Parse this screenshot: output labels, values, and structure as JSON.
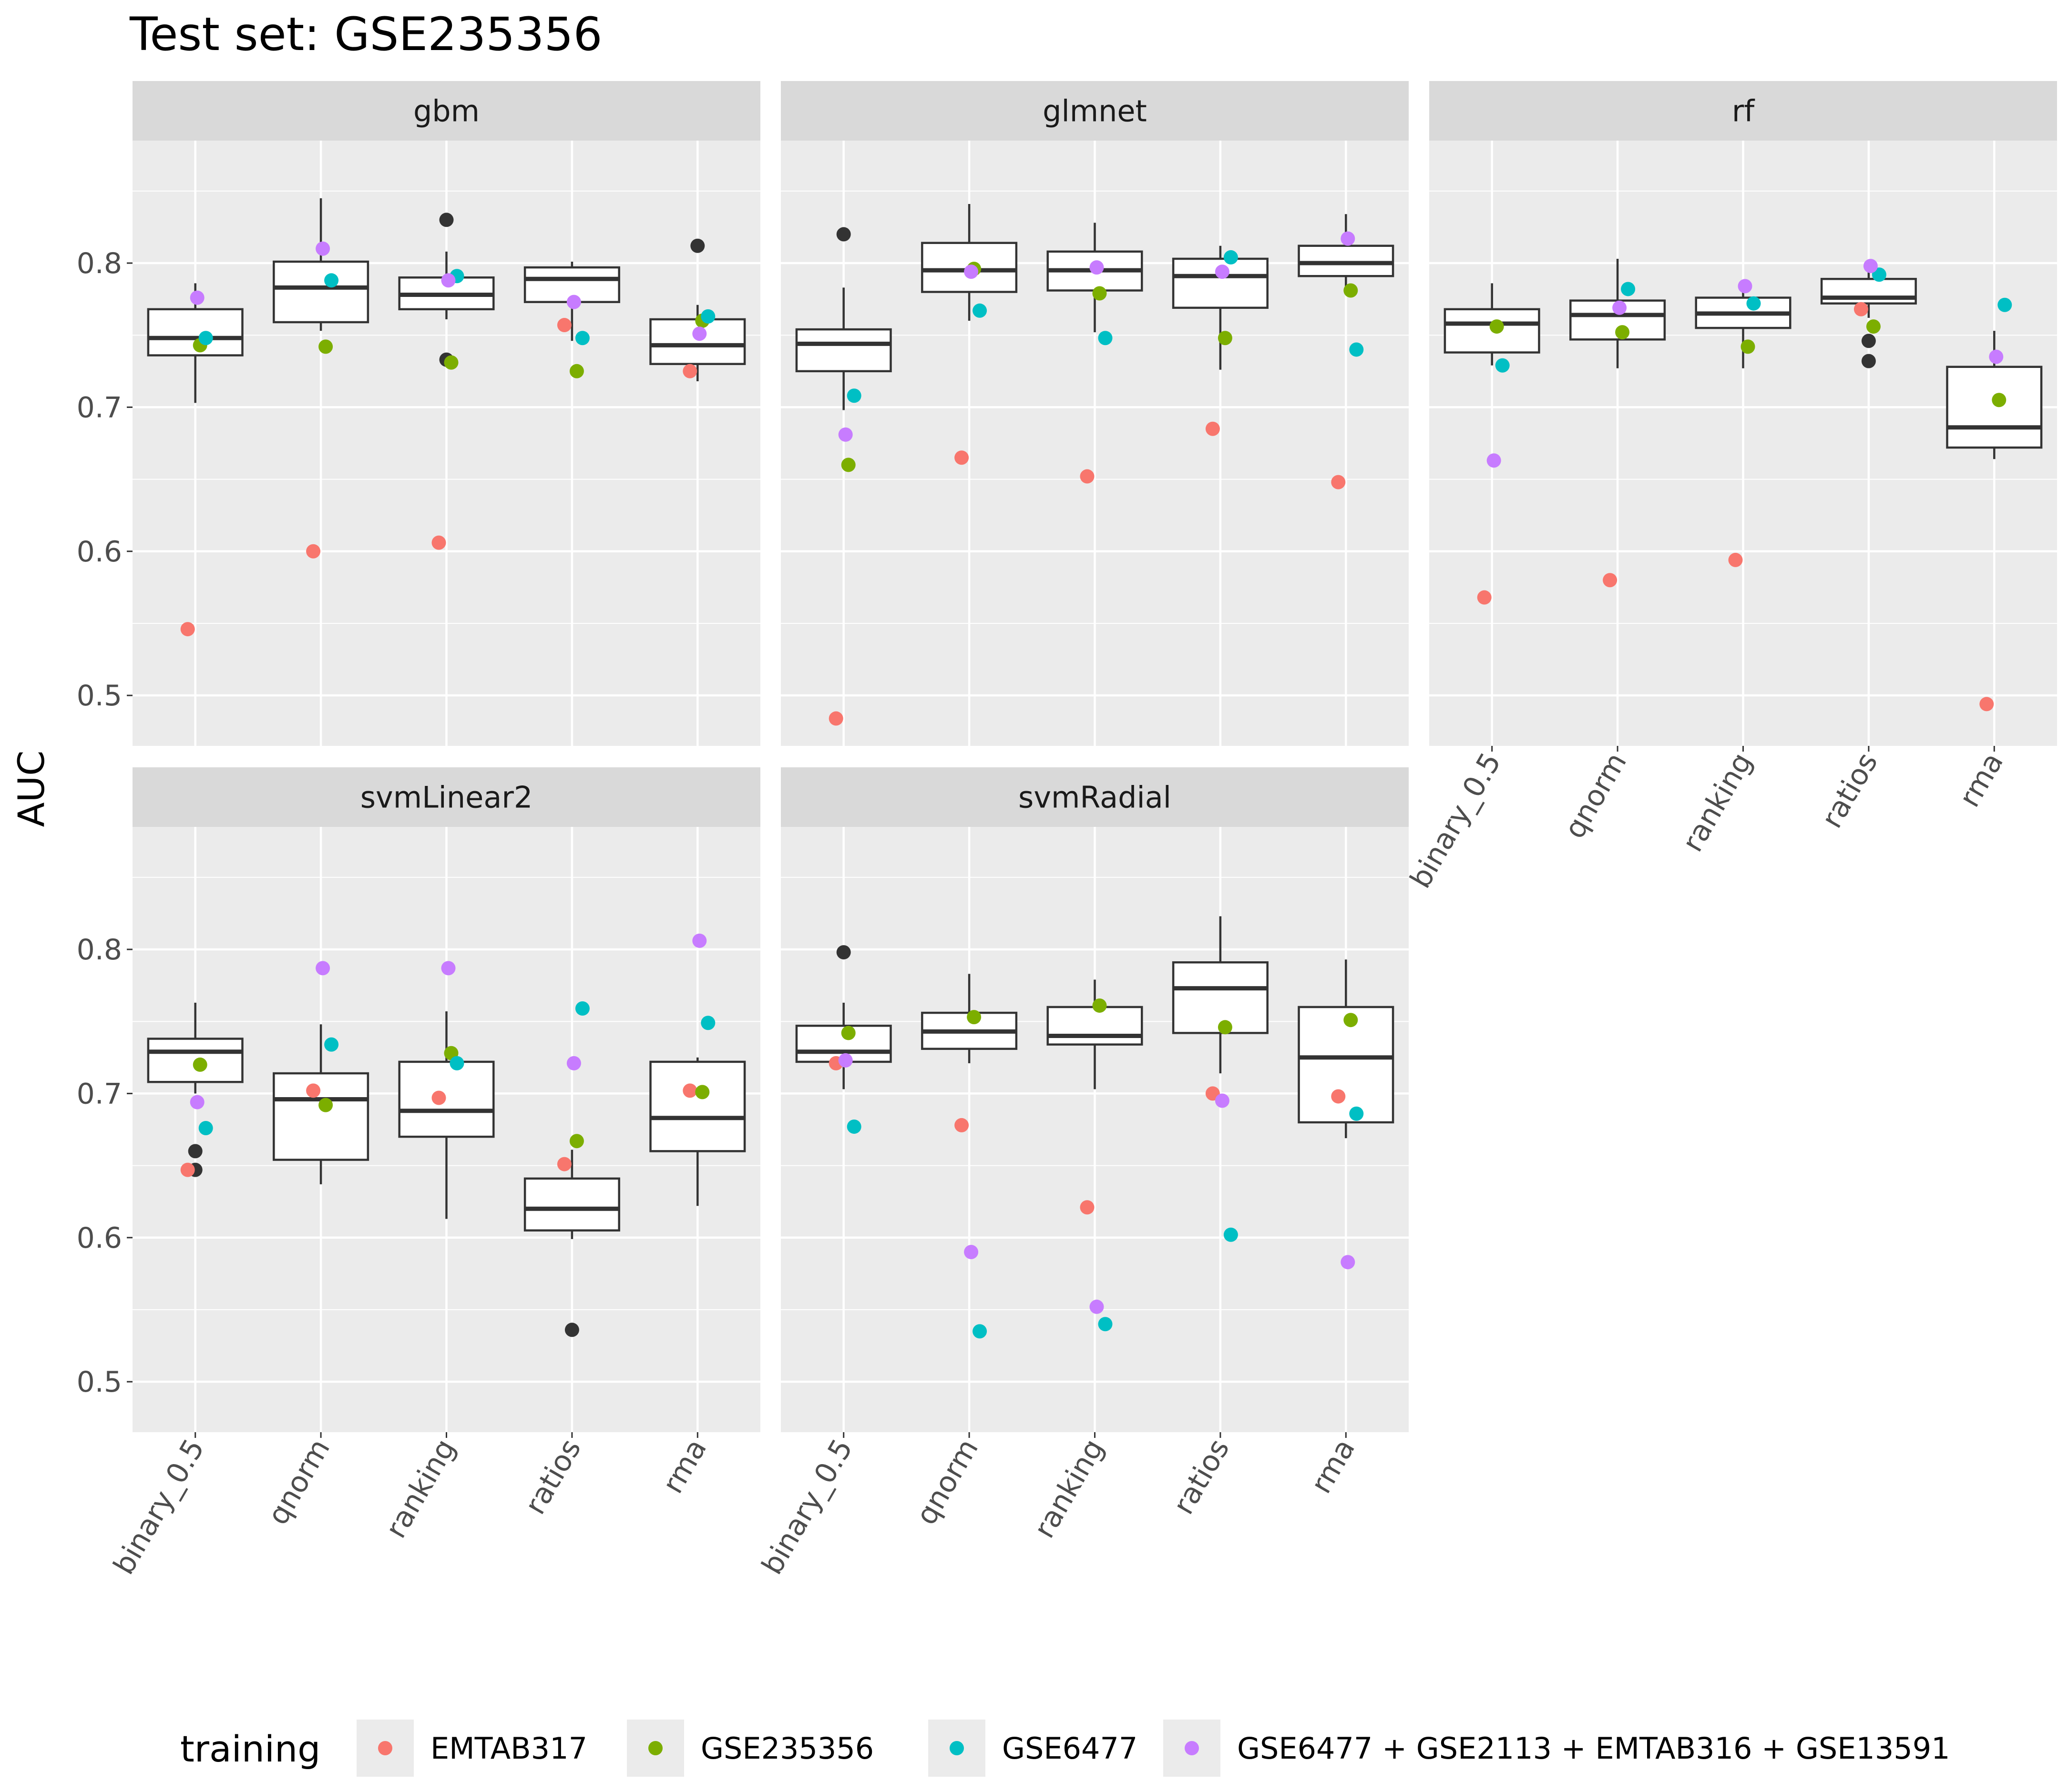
{
  "chart_data": {
    "type": "boxplot",
    "title": "Test set: GSE235356",
    "ylabel": "AUC",
    "xlabel": "",
    "ylim": [
      0.465,
      0.885
    ],
    "yticks": [
      0.5,
      0.6,
      0.7,
      0.8
    ],
    "ytick_labels": [
      "0.5",
      "0.6",
      "0.7",
      "0.8"
    ],
    "categories": [
      "binary_0.5",
      "qnorm",
      "ranking",
      "ratios",
      "rma"
    ],
    "legend": {
      "title": "training",
      "position": "bottom",
      "items": [
        {
          "name": "EMTAB317",
          "color": "#F8766D"
        },
        {
          "name": "GSE235356",
          "color": "#7CAE00"
        },
        {
          "name": "GSE6477",
          "color": "#00BFC4"
        },
        {
          "name": "GSE6477 + GSE2113 + EMTAB316 + GSE13591",
          "color": "#C77CFF"
        }
      ]
    },
    "outlier_color": "#333333",
    "panels": [
      {
        "name": "gbm",
        "boxes": [
          {
            "category": "binary_0.5",
            "lower": 0.703,
            "q1": 0.736,
            "median": 0.748,
            "q3": 0.768,
            "upper": 0.786,
            "outliers": [],
            "points": {
              "EMTAB317": 0.546,
              "GSE235356": 0.743,
              "GSE6477": 0.748,
              "GSE6477 + GSE2113 + EMTAB316 + GSE13591": 0.776
            }
          },
          {
            "category": "qnorm",
            "lower": 0.753,
            "q1": 0.759,
            "median": 0.783,
            "q3": 0.801,
            "upper": 0.845,
            "outliers": [],
            "points": {
              "EMTAB317": 0.6,
              "GSE235356": 0.742,
              "GSE6477": 0.788,
              "GSE6477 + GSE2113 + EMTAB316 + GSE13591": 0.81
            }
          },
          {
            "category": "ranking",
            "lower": 0.761,
            "q1": 0.768,
            "median": 0.778,
            "q3": 0.79,
            "upper": 0.808,
            "outliers": [
              0.83,
              0.733
            ],
            "points": {
              "EMTAB317": 0.606,
              "GSE235356": 0.731,
              "GSE6477": 0.791,
              "GSE6477 + GSE2113 + EMTAB316 + GSE13591": 0.788
            }
          },
          {
            "category": "ratios",
            "lower": 0.746,
            "q1": 0.773,
            "median": 0.789,
            "q3": 0.797,
            "upper": 0.801,
            "outliers": [],
            "points": {
              "EMTAB317": 0.757,
              "GSE235356": 0.725,
              "GSE6477": 0.748,
              "GSE6477 + GSE2113 + EMTAB316 + GSE13591": 0.773
            }
          },
          {
            "category": "rma",
            "lower": 0.718,
            "q1": 0.73,
            "median": 0.743,
            "q3": 0.761,
            "upper": 0.771,
            "outliers": [
              0.812
            ],
            "points": {
              "EMTAB317": 0.725,
              "GSE235356": 0.76,
              "GSE6477": 0.763,
              "GSE6477 + GSE2113 + EMTAB316 + GSE13591": 0.751
            }
          }
        ]
      },
      {
        "name": "glmnet",
        "boxes": [
          {
            "category": "binary_0.5",
            "lower": 0.698,
            "q1": 0.725,
            "median": 0.744,
            "q3": 0.754,
            "upper": 0.783,
            "outliers": [
              0.82
            ],
            "points": {
              "EMTAB317": 0.484,
              "GSE235356": 0.66,
              "GSE6477": 0.708,
              "GSE6477 + GSE2113 + EMTAB316 + GSE13591": 0.681
            }
          },
          {
            "category": "qnorm",
            "lower": 0.76,
            "q1": 0.78,
            "median": 0.795,
            "q3": 0.814,
            "upper": 0.841,
            "outliers": [],
            "points": {
              "EMTAB317": 0.665,
              "GSE235356": 0.796,
              "GSE6477": 0.767,
              "GSE6477 + GSE2113 + EMTAB316 + GSE13591": 0.794
            }
          },
          {
            "category": "ranking",
            "lower": 0.752,
            "q1": 0.781,
            "median": 0.795,
            "q3": 0.808,
            "upper": 0.828,
            "outliers": [],
            "points": {
              "EMTAB317": 0.652,
              "GSE235356": 0.779,
              "GSE6477": 0.748,
              "GSE6477 + GSE2113 + EMTAB316 + GSE13591": 0.797
            }
          },
          {
            "category": "ratios",
            "lower": 0.726,
            "q1": 0.769,
            "median": 0.791,
            "q3": 0.803,
            "upper": 0.812,
            "outliers": [],
            "points": {
              "EMTAB317": 0.685,
              "GSE235356": 0.748,
              "GSE6477": 0.804,
              "GSE6477 + GSE2113 + EMTAB316 + GSE13591": 0.794
            }
          },
          {
            "category": "rma",
            "lower": 0.781,
            "q1": 0.791,
            "median": 0.8,
            "q3": 0.812,
            "upper": 0.834,
            "outliers": [],
            "points": {
              "EMTAB317": 0.648,
              "GSE235356": 0.781,
              "GSE6477": 0.74,
              "GSE6477 + GSE2113 + EMTAB316 + GSE13591": 0.817
            }
          }
        ]
      },
      {
        "name": "rf",
        "boxes": [
          {
            "category": "binary_0.5",
            "lower": 0.729,
            "q1": 0.738,
            "median": 0.758,
            "q3": 0.768,
            "upper": 0.786,
            "outliers": [],
            "points": {
              "EMTAB317": 0.568,
              "GSE235356": 0.756,
              "GSE6477": 0.729,
              "GSE6477 + GSE2113 + EMTAB316 + GSE13591": 0.663
            }
          },
          {
            "category": "qnorm",
            "lower": 0.727,
            "q1": 0.747,
            "median": 0.764,
            "q3": 0.774,
            "upper": 0.803,
            "outliers": [],
            "points": {
              "EMTAB317": 0.58,
              "GSE235356": 0.752,
              "GSE6477": 0.782,
              "GSE6477 + GSE2113 + EMTAB316 + GSE13591": 0.769
            }
          },
          {
            "category": "ranking",
            "lower": 0.727,
            "q1": 0.755,
            "median": 0.765,
            "q3": 0.776,
            "upper": 0.788,
            "outliers": [],
            "points": {
              "EMTAB317": 0.594,
              "GSE235356": 0.742,
              "GSE6477": 0.772,
              "GSE6477 + GSE2113 + EMTAB316 + GSE13591": 0.784
            }
          },
          {
            "category": "ratios",
            "lower": 0.762,
            "q1": 0.772,
            "median": 0.776,
            "q3": 0.789,
            "upper": 0.799,
            "outliers": [
              0.746,
              0.732
            ],
            "points": {
              "EMTAB317": 0.768,
              "GSE235356": 0.756,
              "GSE6477": 0.792,
              "GSE6477 + GSE2113 + EMTAB316 + GSE13591": 0.798
            }
          },
          {
            "category": "rma",
            "lower": 0.664,
            "q1": 0.672,
            "median": 0.686,
            "q3": 0.728,
            "upper": 0.753,
            "outliers": [],
            "points": {
              "EMTAB317": 0.494,
              "GSE235356": 0.705,
              "GSE6477": 0.771,
              "GSE6477 + GSE2113 + EMTAB316 + GSE13591": 0.735
            }
          }
        ]
      },
      {
        "name": "svmLinear2",
        "boxes": [
          {
            "category": "binary_0.5",
            "lower": 0.7,
            "q1": 0.708,
            "median": 0.729,
            "q3": 0.738,
            "upper": 0.763,
            "outliers": [
              0.66,
              0.647
            ],
            "points": {
              "EMTAB317": 0.647,
              "GSE235356": 0.72,
              "GSE6477": 0.676,
              "GSE6477 + GSE2113 + EMTAB316 + GSE13591": 0.694
            }
          },
          {
            "category": "qnorm",
            "lower": 0.637,
            "q1": 0.654,
            "median": 0.696,
            "q3": 0.714,
            "upper": 0.748,
            "outliers": [],
            "points": {
              "EMTAB317": 0.702,
              "GSE235356": 0.692,
              "GSE6477": 0.734,
              "GSE6477 + GSE2113 + EMTAB316 + GSE13591": 0.787
            }
          },
          {
            "category": "ranking",
            "lower": 0.613,
            "q1": 0.67,
            "median": 0.688,
            "q3": 0.722,
            "upper": 0.757,
            "outliers": [],
            "points": {
              "EMTAB317": 0.697,
              "GSE235356": 0.728,
              "GSE6477": 0.721,
              "GSE6477 + GSE2113 + EMTAB316 + GSE13591": 0.787
            }
          },
          {
            "category": "ratios",
            "lower": 0.599,
            "q1": 0.605,
            "median": 0.62,
            "q3": 0.641,
            "upper": 0.661,
            "outliers": [
              0.536
            ],
            "points": {
              "EMTAB317": 0.651,
              "GSE235356": 0.667,
              "GSE6477": 0.759,
              "GSE6477 + GSE2113 + EMTAB316 + GSE13591": 0.721
            }
          },
          {
            "category": "rma",
            "lower": 0.622,
            "q1": 0.66,
            "median": 0.683,
            "q3": 0.722,
            "upper": 0.725,
            "outliers": [],
            "points": {
              "EMTAB317": 0.702,
              "GSE235356": 0.701,
              "GSE6477": 0.749,
              "GSE6477 + GSE2113 + EMTAB316 + GSE13591": 0.806
            }
          }
        ]
      },
      {
        "name": "svmRadial",
        "boxes": [
          {
            "category": "binary_0.5",
            "lower": 0.703,
            "q1": 0.722,
            "median": 0.729,
            "q3": 0.747,
            "upper": 0.763,
            "outliers": [
              0.798
            ],
            "points": {
              "EMTAB317": 0.721,
              "GSE235356": 0.742,
              "GSE6477": 0.677,
              "GSE6477 + GSE2113 + EMTAB316 + GSE13591": 0.723
            }
          },
          {
            "category": "qnorm",
            "lower": 0.721,
            "q1": 0.731,
            "median": 0.743,
            "q3": 0.756,
            "upper": 0.783,
            "outliers": [],
            "points": {
              "EMTAB317": 0.678,
              "GSE235356": 0.753,
              "GSE6477": 0.535,
              "GSE6477 + GSE2113 + EMTAB316 + GSE13591": 0.59
            }
          },
          {
            "category": "ranking",
            "lower": 0.703,
            "q1": 0.734,
            "median": 0.74,
            "q3": 0.76,
            "upper": 0.779,
            "outliers": [],
            "points": {
              "EMTAB317": 0.621,
              "GSE235356": 0.761,
              "GSE6477": 0.54,
              "GSE6477 + GSE2113 + EMTAB316 + GSE13591": 0.552
            }
          },
          {
            "category": "ratios",
            "lower": 0.714,
            "q1": 0.742,
            "median": 0.773,
            "q3": 0.791,
            "upper": 0.823,
            "outliers": [],
            "points": {
              "EMTAB317": 0.7,
              "GSE235356": 0.746,
              "GSE6477": 0.602,
              "GSE6477 + GSE2113 + EMTAB316 + GSE13591": 0.695
            }
          },
          {
            "category": "rma",
            "lower": 0.669,
            "q1": 0.68,
            "median": 0.725,
            "q3": 0.76,
            "upper": 0.793,
            "outliers": [],
            "points": {
              "EMTAB317": 0.698,
              "GSE235356": 0.751,
              "GSE6477": 0.686,
              "GSE6477 + GSE2113 + EMTAB316 + GSE13591": 0.583
            }
          }
        ]
      }
    ]
  }
}
